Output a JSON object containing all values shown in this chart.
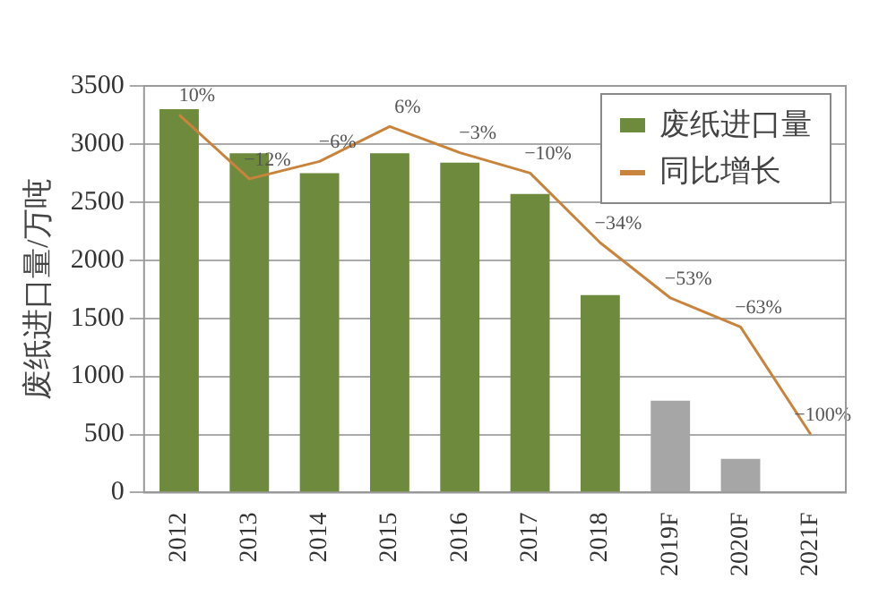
{
  "chart_data": {
    "type": "bar",
    "ylabel": "废纸进口量/万吨",
    "categories": [
      "2012",
      "2013",
      "2014",
      "2015",
      "2016",
      "2017",
      "2018",
      "2019F",
      "2020F",
      "2021F"
    ],
    "series": [
      {
        "name": "废纸进口量",
        "color": "#6e8b3d",
        "colors": [
          "#6e8b3d",
          "#6e8b3d",
          "#6e8b3d",
          "#6e8b3d",
          "#6e8b3d",
          "#6e8b3d",
          "#6e8b3d",
          "#a6a6a6",
          "#a6a6a6",
          "#a6a6a6"
        ],
        "values": [
          3300,
          2920,
          2750,
          2920,
          2840,
          2570,
          1700,
          790,
          290,
          0
        ]
      },
      {
        "name": "同比增长",
        "type": "line",
        "axis": "y2",
        "color": "#c8843c",
        "values": [
          10,
          -12,
          -6,
          6,
          -3,
          -10,
          -34,
          -53,
          -63,
          -100
        ],
        "value_labels": [
          "10%",
          "−12%",
          "−6%",
          "6%",
          "−3%",
          "−10%",
          "−34%",
          "−53%",
          "−63%",
          "−100%"
        ]
      }
    ],
    "ylim": [
      0,
      3500
    ],
    "yticks": [
      0,
      500,
      1000,
      1500,
      2000,
      2500,
      3000,
      3500
    ],
    "grid": "y",
    "legend": "top right"
  }
}
